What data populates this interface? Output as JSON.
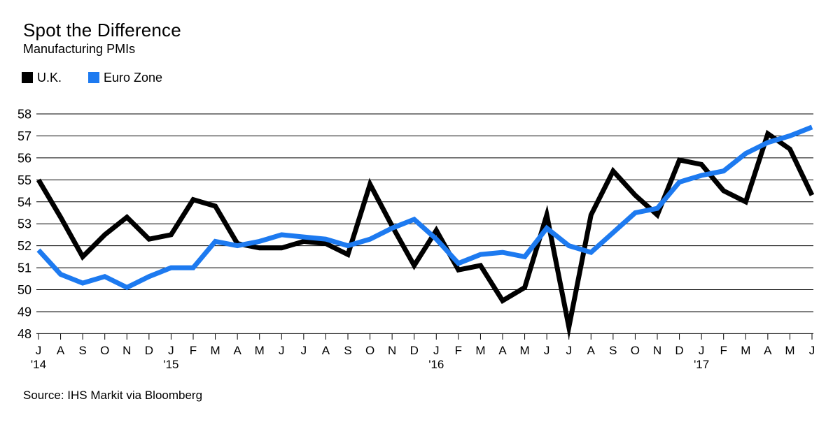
{
  "header": {
    "title": "Spot the Difference",
    "subtitle": "Manufacturing PMIs"
  },
  "legend": [
    {
      "label": "U.K.",
      "color": "#000000"
    },
    {
      "label": "Euro Zone",
      "color": "#1d7af0"
    }
  ],
  "source": "Source: IHS Markit via Bloomberg",
  "chart_data": {
    "type": "line",
    "x_months": [
      "Jul 2014",
      "Aug 2014",
      "Sep 2014",
      "Oct 2014",
      "Nov 2014",
      "Dec 2014",
      "Jan 2015",
      "Feb 2015",
      "Mar 2015",
      "Apr 2015",
      "May 2015",
      "Jun 2015",
      "Jul 2015",
      "Aug 2015",
      "Sep 2015",
      "Oct 2015",
      "Nov 2015",
      "Dec 2015",
      "Jan 2016",
      "Feb 2016",
      "Mar 2016",
      "Apr 2016",
      "May 2016",
      "Jun 2016",
      "Jul 2016",
      "Aug 2016",
      "Sep 2016",
      "Oct 2016",
      "Nov 2016",
      "Dec 2016",
      "Jan 2017",
      "Feb 2017",
      "Mar 2017",
      "Apr 2017",
      "May 2017",
      "Jun 2017"
    ],
    "x_tick_labels": [
      "J",
      "A",
      "S",
      "O",
      "N",
      "D",
      "J",
      "F",
      "M",
      "A",
      "M",
      "J",
      "J",
      "A",
      "S",
      "O",
      "N",
      "D",
      "J",
      "F",
      "M",
      "A",
      "M",
      "J",
      "J",
      "A",
      "S",
      "O",
      "N",
      "D",
      "J",
      "F",
      "M",
      "A",
      "M",
      "J"
    ],
    "year_labels": [
      {
        "text": "'14",
        "month_index": 0
      },
      {
        "text": "'15",
        "month_index": 6
      },
      {
        "text": "'16",
        "month_index": 18
      },
      {
        "text": "'17",
        "month_index": 30
      }
    ],
    "ylim": [
      48,
      58
    ],
    "yticks": [
      48,
      49,
      50,
      51,
      52,
      53,
      54,
      55,
      56,
      57,
      58
    ],
    "grid": true,
    "legend_position": "top-left",
    "series": [
      {
        "name": "U.K.",
        "color": "#000000",
        "values": [
          55.0,
          53.3,
          51.5,
          52.5,
          53.3,
          52.3,
          52.5,
          54.1,
          53.8,
          52.1,
          51.9,
          51.9,
          52.2,
          52.1,
          51.6,
          54.8,
          52.9,
          51.1,
          52.7,
          50.9,
          51.1,
          49.5,
          50.1,
          53.4,
          48.3,
          53.4,
          55.4,
          54.3,
          53.4,
          55.9,
          55.7,
          54.5,
          54.0,
          57.1,
          56.4,
          54.3
        ]
      },
      {
        "name": "Euro Zone",
        "color": "#1d7af0",
        "values": [
          51.8,
          50.7,
          50.3,
          50.6,
          50.1,
          50.6,
          51.0,
          51.0,
          52.2,
          52.0,
          52.2,
          52.5,
          52.4,
          52.3,
          52.0,
          52.3,
          52.8,
          53.2,
          52.3,
          51.2,
          51.6,
          51.7,
          51.5,
          52.8,
          52.0,
          51.7,
          52.6,
          53.5,
          53.7,
          54.9,
          55.2,
          55.4,
          56.2,
          56.7,
          57.0,
          57.4
        ]
      }
    ]
  }
}
